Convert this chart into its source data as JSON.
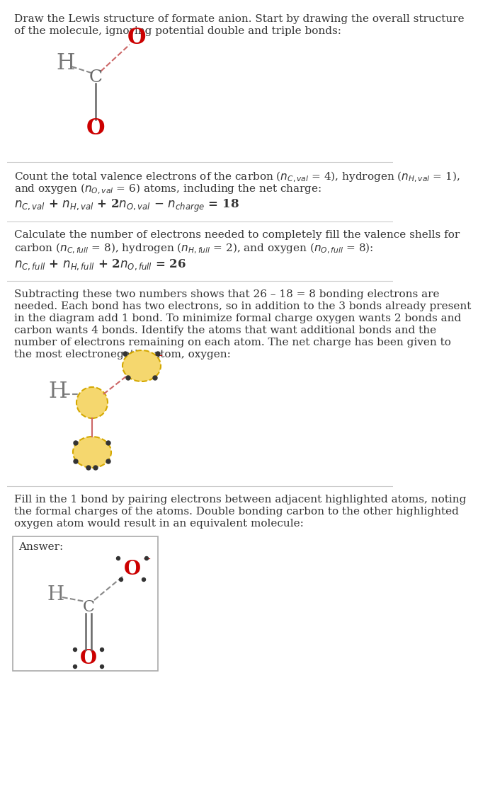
{
  "bg_color": "#ffffff",
  "text_color": "#333333",
  "atom_color_O": "#cc0000",
  "atom_color_C": "#555555",
  "atom_color_H": "#555555",
  "bond_color": "#888888",
  "highlight_color": "#f5d76e",
  "highlight_border": "#d4a800",
  "sep_color": "#cccccc",
  "section1_lines": [
    "Draw the Lewis structure of formate anion. Start by drawing the overall structure",
    "of the molecule, ignoring potential double and triple bonds:"
  ],
  "section2_lines": [
    "Count the total valence electrons of the carbon ($n_{C,val}$ = 4), hydrogen ($n_{H,val}$ = 1),",
    "and oxygen ($n_{O,val}$ = 6) atoms, including the net charge:"
  ],
  "section2_eq": "$n_{C,val}$ + $n_{H,val}$ + 2$n_{O,val}$ $-$ $n_{charge}$ = 18",
  "section3_lines": [
    "Calculate the number of electrons needed to completely fill the valence shells for",
    "carbon ($n_{C,full}$ = 8), hydrogen ($n_{H,full}$ = 2), and oxygen ($n_{O,full}$ = 8):"
  ],
  "section3_eq": "$n_{C,full}$ + $n_{H,full}$ + 2$n_{O,full}$ = 26",
  "section4_lines": [
    "Subtracting these two numbers shows that 26 – 18 = 8 bonding electrons are",
    "needed. Each bond has two electrons, so in addition to the 3 bonds already present",
    "in the diagram add 1 bond. To minimize formal charge oxygen wants 2 bonds and",
    "carbon wants 4 bonds. Identify the atoms that want additional bonds and the",
    "number of electrons remaining on each atom. The net charge has been given to",
    "the most electronegative atom, oxygen:"
  ],
  "section5_lines": [
    "Fill in the 1 bond by pairing electrons between adjacent highlighted atoms, noting",
    "the formal charges of the atoms. Double bonding carbon to the other highlighted",
    "oxygen atom would result in an equivalent molecule:"
  ],
  "answer_label": "Answer:"
}
